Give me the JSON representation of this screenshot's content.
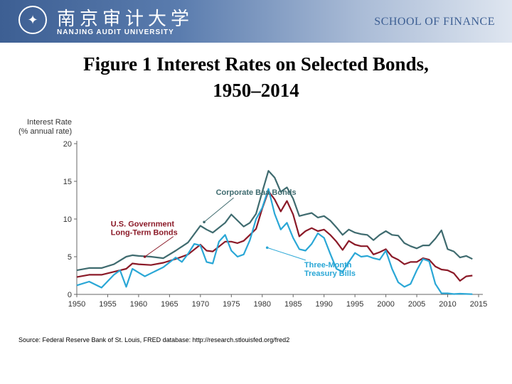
{
  "header": {
    "logo_cn": "南京审计大学",
    "logo_en": "NANJING AUDIT UNIVERSITY",
    "school": "SCHOOL OF FINANCE"
  },
  "figure": {
    "title_line1": "Figure 1 Interest Rates on Selected Bonds,",
    "title_line2": "1950–2014",
    "source": "Source: Federal Reserve Bank of St. Louis, FRED database: http://research.stlouisfed.org/fred2"
  },
  "chart_data": {
    "type": "line",
    "title": "Figure 1 Interest Rates on Selected Bonds, 1950–2014",
    "ylabel_line1": "Interest Rate",
    "ylabel_line2": "(% annual rate)",
    "xlim": [
      1950,
      2015
    ],
    "ylim": [
      0,
      20
    ],
    "x_ticks": [
      1950,
      1955,
      1960,
      1965,
      1970,
      1975,
      1980,
      1985,
      1990,
      1995,
      2000,
      2005,
      2010,
      2015
    ],
    "y_ticks": [
      0,
      5,
      10,
      15,
      20
    ],
    "grid": false,
    "series": [
      {
        "name": "Corporate Baa Bonds",
        "color": "#3f6b6f",
        "points": [
          [
            1950,
            3.2
          ],
          [
            1952,
            3.5
          ],
          [
            1954,
            3.5
          ],
          [
            1956,
            4.0
          ],
          [
            1958,
            5.0
          ],
          [
            1959,
            5.2
          ],
          [
            1960,
            5.1
          ],
          [
            1962,
            5.0
          ],
          [
            1964,
            4.8
          ],
          [
            1966,
            5.8
          ],
          [
            1968,
            6.9
          ],
          [
            1970,
            9.1
          ],
          [
            1971,
            8.6
          ],
          [
            1972,
            8.2
          ],
          [
            1974,
            9.5
          ],
          [
            1975,
            10.6
          ],
          [
            1976,
            9.8
          ],
          [
            1977,
            9.0
          ],
          [
            1978,
            9.5
          ],
          [
            1979,
            10.7
          ],
          [
            1980,
            13.6
          ],
          [
            1981,
            16.4
          ],
          [
            1982,
            15.5
          ],
          [
            1983,
            13.6
          ],
          [
            1984,
            14.2
          ],
          [
            1985,
            12.7
          ],
          [
            1986,
            10.4
          ],
          [
            1987,
            10.6
          ],
          [
            1988,
            10.8
          ],
          [
            1989,
            10.2
          ],
          [
            1990,
            10.4
          ],
          [
            1991,
            9.8
          ],
          [
            1992,
            8.9
          ],
          [
            1993,
            7.9
          ],
          [
            1994,
            8.6
          ],
          [
            1995,
            8.2
          ],
          [
            1996,
            8.0
          ],
          [
            1997,
            7.9
          ],
          [
            1998,
            7.2
          ],
          [
            1999,
            7.9
          ],
          [
            2000,
            8.4
          ],
          [
            2001,
            7.9
          ],
          [
            2002,
            7.8
          ],
          [
            2003,
            6.8
          ],
          [
            2004,
            6.4
          ],
          [
            2005,
            6.1
          ],
          [
            2006,
            6.5
          ],
          [
            2007,
            6.5
          ],
          [
            2008,
            7.4
          ],
          [
            2009,
            8.5
          ],
          [
            2010,
            6.0
          ],
          [
            2011,
            5.7
          ],
          [
            2012,
            4.9
          ],
          [
            2013,
            5.1
          ],
          [
            2014,
            4.7
          ]
        ]
      },
      {
        "name": "U.S. Government Long-Term Bonds",
        "color": "#8b1a28",
        "points": [
          [
            1950,
            2.3
          ],
          [
            1952,
            2.6
          ],
          [
            1954,
            2.6
          ],
          [
            1956,
            3.0
          ],
          [
            1958,
            3.4
          ],
          [
            1959,
            4.1
          ],
          [
            1960,
            4.0
          ],
          [
            1962,
            3.9
          ],
          [
            1964,
            4.2
          ],
          [
            1966,
            4.7
          ],
          [
            1968,
            5.3
          ],
          [
            1970,
            6.6
          ],
          [
            1971,
            5.8
          ],
          [
            1972,
            5.7
          ],
          [
            1974,
            7.0
          ],
          [
            1975,
            7.0
          ],
          [
            1976,
            6.8
          ],
          [
            1977,
            7.1
          ],
          [
            1978,
            7.9
          ],
          [
            1979,
            8.7
          ],
          [
            1980,
            11.4
          ],
          [
            1981,
            13.7
          ],
          [
            1982,
            12.6
          ],
          [
            1983,
            11.0
          ],
          [
            1984,
            12.4
          ],
          [
            1985,
            10.6
          ],
          [
            1986,
            7.7
          ],
          [
            1987,
            8.4
          ],
          [
            1988,
            8.8
          ],
          [
            1989,
            8.4
          ],
          [
            1990,
            8.6
          ],
          [
            1991,
            7.9
          ],
          [
            1992,
            7.0
          ],
          [
            1993,
            5.9
          ],
          [
            1994,
            7.1
          ],
          [
            1995,
            6.6
          ],
          [
            1996,
            6.4
          ],
          [
            1997,
            6.4
          ],
          [
            1998,
            5.3
          ],
          [
            1999,
            5.6
          ],
          [
            2000,
            6.0
          ],
          [
            2001,
            5.0
          ],
          [
            2002,
            4.6
          ],
          [
            2003,
            4.0
          ],
          [
            2004,
            4.3
          ],
          [
            2005,
            4.3
          ],
          [
            2006,
            4.8
          ],
          [
            2007,
            4.6
          ],
          [
            2008,
            3.7
          ],
          [
            2009,
            3.3
          ],
          [
            2010,
            3.2
          ],
          [
            2011,
            2.8
          ],
          [
            2012,
            1.8
          ],
          [
            2013,
            2.4
          ],
          [
            2014,
            2.5
          ]
        ]
      },
      {
        "name": "Three-Month Treasury Bills",
        "color": "#2aa7d6",
        "points": [
          [
            1950,
            1.2
          ],
          [
            1952,
            1.7
          ],
          [
            1954,
            0.9
          ],
          [
            1956,
            2.6
          ],
          [
            1957,
            3.2
          ],
          [
            1958,
            1.0
          ],
          [
            1959,
            3.4
          ],
          [
            1960,
            2.9
          ],
          [
            1961,
            2.4
          ],
          [
            1962,
            2.8
          ],
          [
            1964,
            3.6
          ],
          [
            1966,
            4.9
          ],
          [
            1967,
            4.3
          ],
          [
            1968,
            5.4
          ],
          [
            1969,
            6.7
          ],
          [
            1970,
            6.5
          ],
          [
            1971,
            4.3
          ],
          [
            1972,
            4.1
          ],
          [
            1973,
            7.0
          ],
          [
            1974,
            7.9
          ],
          [
            1975,
            5.8
          ],
          [
            1976,
            5.0
          ],
          [
            1977,
            5.3
          ],
          [
            1978,
            7.2
          ],
          [
            1979,
            10.0
          ],
          [
            1980,
            11.5
          ],
          [
            1981,
            14.0
          ],
          [
            1982,
            10.7
          ],
          [
            1983,
            8.6
          ],
          [
            1984,
            9.5
          ],
          [
            1985,
            7.5
          ],
          [
            1986,
            6.0
          ],
          [
            1987,
            5.8
          ],
          [
            1988,
            6.7
          ],
          [
            1989,
            8.1
          ],
          [
            1990,
            7.5
          ],
          [
            1991,
            5.4
          ],
          [
            1992,
            3.4
          ],
          [
            1993,
            3.0
          ],
          [
            1994,
            4.3
          ],
          [
            1995,
            5.5
          ],
          [
            1996,
            5.0
          ],
          [
            1997,
            5.1
          ],
          [
            1998,
            4.8
          ],
          [
            1999,
            4.6
          ],
          [
            2000,
            5.8
          ],
          [
            2001,
            3.4
          ],
          [
            2002,
            1.6
          ],
          [
            2003,
            1.0
          ],
          [
            2004,
            1.4
          ],
          [
            2005,
            3.2
          ],
          [
            2006,
            4.7
          ],
          [
            2007,
            4.4
          ],
          [
            2008,
            1.4
          ],
          [
            2009,
            0.15
          ],
          [
            2010,
            0.14
          ],
          [
            2011,
            0.05
          ],
          [
            2012,
            0.09
          ],
          [
            2013,
            0.06
          ],
          [
            2014,
            0.03
          ]
        ]
      }
    ],
    "annotations": [
      {
        "lines": [
          "Corporate Baa Bonds"
        ],
        "color": "#3f6b6f",
        "label_at": [
          1972.5,
          13.2
        ],
        "arrow_to": [
          1970.6,
          9.6
        ]
      },
      {
        "lines": [
          "U.S. Government",
          "Long-Term Bonds"
        ],
        "color": "#8b1a28",
        "label_at": [
          1955.5,
          9.0
        ],
        "arrow_to": [
          1961,
          5.0
        ]
      },
      {
        "lines": [
          "Three-Month",
          "Treasury Bills"
        ],
        "color": "#2aa7d6",
        "label_at": [
          1986.8,
          3.6
        ],
        "arrow_to": [
          1980.8,
          6.2
        ]
      }
    ]
  }
}
